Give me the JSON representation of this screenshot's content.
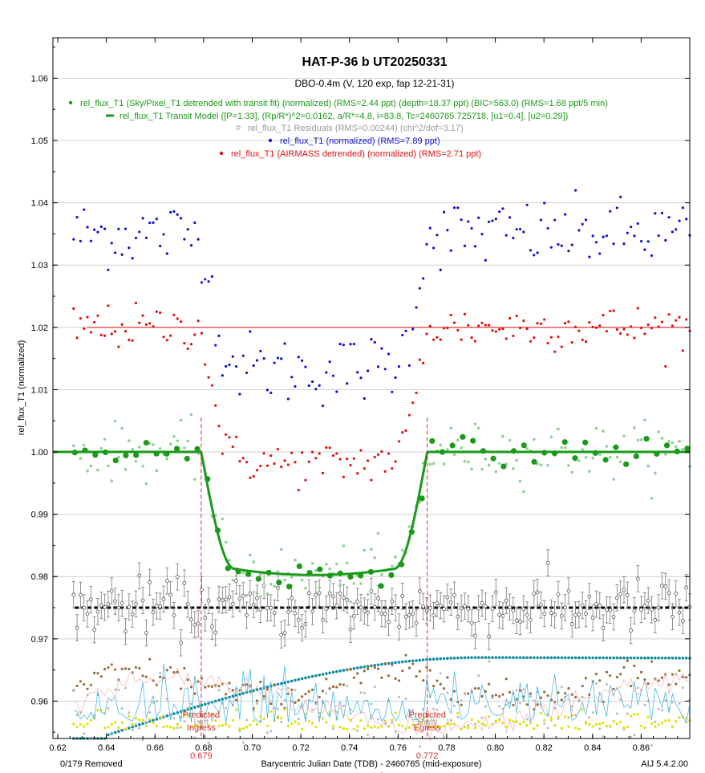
{
  "chart_data": {
    "type": "scatter",
    "title": "HAT-P-36 b  UT20250331",
    "subtitle": "DBO-0.4m (V, 120 exp, fap 12-21-31)",
    "xlabel": "Barycentric Julian Date (TDB) - 2460765 (mid-exposure)",
    "ylabel": "rel_flux_T1 (normalized)",
    "xlim": [
      0.618,
      0.88
    ],
    "ylim": [
      0.954,
      1.0665
    ],
    "x_ticks": [
      "0.62",
      "0.64",
      "0.66",
      "0.68",
      "0.70",
      "0.72",
      "0.74",
      "0.76",
      "0.78",
      "0.80",
      "0.82",
      "0.84",
      "0.86"
    ],
    "y_ticks": [
      "0.96",
      "0.97",
      "0.98",
      "0.99",
      "1.00",
      "1.01",
      "1.02",
      "1.03",
      "1.04",
      "1.05",
      "1.06"
    ],
    "grid": true,
    "legend_position": "top-center",
    "legend": [
      {
        "text": "rel_flux_T1 (Sky/Pixel_T1 detrended with transit fit) (normalized) (RMS=2.44 ppt) (depth=18.37 ppt) (BIC=563.0) (RMS=1.68 ppt/5 min)",
        "color": "#1a9a1a",
        "marker": "dot"
      },
      {
        "text": "rel_flux_T1 Transit Model ([P=1.33], (Rp/R*)^2=0.0162, a/R*=4.8, i=83.8, Tc=2460765.725718, [u1=0.4], [u2=0.29])",
        "color": "#1a9a1a",
        "marker": "dash"
      },
      {
        "text": "rel_flux_T1 Residuals (RMS=0.00244) (chi^2/dof=3.17)",
        "color": "#9a9a9a",
        "marker": "circle"
      },
      {
        "text": "rel_flux_T1 (normalized) (RMS=7.89 ppt)",
        "color": "#1010d0",
        "marker": "dot"
      },
      {
        "text": "rel_flux_T1 (AIRMASS detrended) (normalized) (RMS=2.71 ppt)",
        "color": "#e01010",
        "marker": "dot"
      }
    ],
    "ingress": {
      "x": 0.679,
      "label1": "Predicted",
      "label2": "Ingress",
      "label3": "Left",
      "value": "0.679"
    },
    "egress": {
      "x": 0.772,
      "label1": "Predicted",
      "label2": "Egress",
      "label3": "Right",
      "value": "0.772"
    },
    "model": {
      "tc": 0.725718,
      "depth": 0.01837,
      "t_ingress": 0.679,
      "t_egress": 0.772,
      "duration_ramp": 0.0135
    },
    "series": [
      {
        "name": "blue_normalized",
        "color": "#1010d0",
        "baseline": 1.035,
        "depth": 0.0205,
        "scatter": 0.0028
      },
      {
        "name": "red_airmass",
        "color": "#e01010",
        "baseline": 1.02,
        "depth": 0.0205,
        "scatter": 0.0018
      },
      {
        "name": "green_detrended",
        "color": "#1a9a1a",
        "baseline": 1.0,
        "depth": 0.0184,
        "scatter": 0.0022
      },
      {
        "name": "residuals",
        "color": "#9a9a9a",
        "baseline": 0.975,
        "depth": 0,
        "scatter": 0.0022
      },
      {
        "name": "airmass",
        "color": "#108c9c",
        "baseline": 0.9545
      },
      {
        "name": "sky",
        "color": "#9a6a3a",
        "baseline": 0.9605
      },
      {
        "name": "width",
        "color": "#b0b0b0",
        "baseline": 0.957
      },
      {
        "name": "xy",
        "color": "#e0e000",
        "baseline": 0.956
      }
    ]
  },
  "footer": {
    "removed": "0/179 Removed",
    "version": "AIJ 5.4.2.00"
  }
}
